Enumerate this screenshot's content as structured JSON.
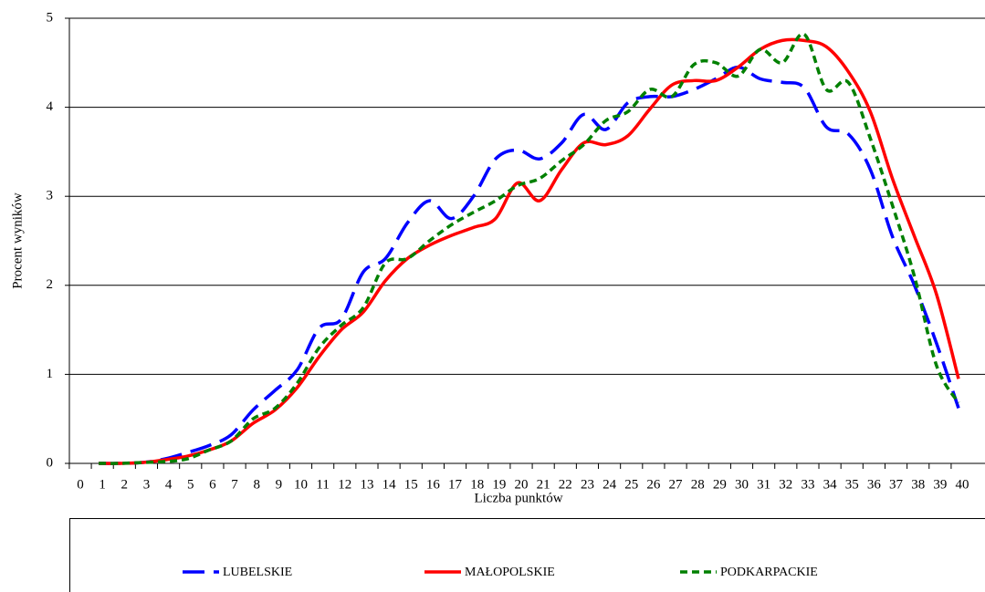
{
  "chart_data": {
    "type": "line",
    "xlabel": "Liczba punktów",
    "ylabel": "Procent wyników",
    "categories": [
      "0",
      "1",
      "2",
      "3",
      "4",
      "5",
      "6",
      "7",
      "8",
      "9",
      "10",
      "11",
      "12",
      "13",
      "14",
      "15",
      "16",
      "17",
      "18",
      "19",
      "20",
      "21",
      "22",
      "23",
      "24",
      "25",
      "26",
      "27",
      "28",
      "29",
      "30",
      "31",
      "32",
      "33",
      "34",
      "35",
      "36",
      "37",
      "38",
      "39",
      "40"
    ],
    "series": [
      {
        "name": "LUBELSKIE",
        "color": "#0000ff",
        "dash": "24 10",
        "values": [
          null,
          0,
          0,
          0.01,
          0.05,
          0.12,
          0.2,
          0.32,
          0.6,
          0.82,
          1.05,
          1.52,
          1.62,
          2.15,
          2.3,
          2.7,
          2.95,
          2.75,
          3.0,
          3.42,
          3.52,
          3.42,
          3.6,
          3.92,
          3.75,
          4.05,
          4.12,
          4.12,
          4.2,
          4.32,
          4.45,
          4.32,
          4.28,
          4.22,
          3.78,
          3.7,
          3.3,
          2.55,
          2.0,
          1.35,
          0.62
        ]
      },
      {
        "name": "MAŁOPOLSKIE",
        "color": "#ff0000",
        "dash": "none",
        "values": [
          null,
          0,
          0,
          0.01,
          0.04,
          0.08,
          0.15,
          0.25,
          0.45,
          0.6,
          0.85,
          1.2,
          1.5,
          1.7,
          2.05,
          2.3,
          2.45,
          2.56,
          2.65,
          2.75,
          3.15,
          2.95,
          3.3,
          3.6,
          3.58,
          3.68,
          3.98,
          4.25,
          4.3,
          4.3,
          4.45,
          4.65,
          4.75,
          4.75,
          4.68,
          4.4,
          3.95,
          3.2,
          2.55,
          1.9,
          0.95
        ]
      },
      {
        "name": "PODKARPACKIE",
        "color": "#008000",
        "dash": "8 5",
        "values": [
          null,
          0,
          0,
          0.01,
          0.02,
          0.05,
          0.15,
          0.25,
          0.5,
          0.62,
          0.9,
          1.3,
          1.55,
          1.75,
          2.25,
          2.3,
          2.5,
          2.68,
          2.82,
          2.95,
          3.12,
          3.2,
          3.4,
          3.58,
          3.85,
          3.95,
          4.2,
          4.12,
          4.48,
          4.5,
          4.35,
          4.65,
          4.5,
          4.82,
          4.2,
          4.28,
          3.65,
          2.9,
          2.1,
          1.1,
          0.68
        ]
      }
    ],
    "ylim": [
      0,
      5
    ],
    "yticks": [
      0,
      1,
      2,
      3,
      4,
      5
    ],
    "grid": true
  }
}
